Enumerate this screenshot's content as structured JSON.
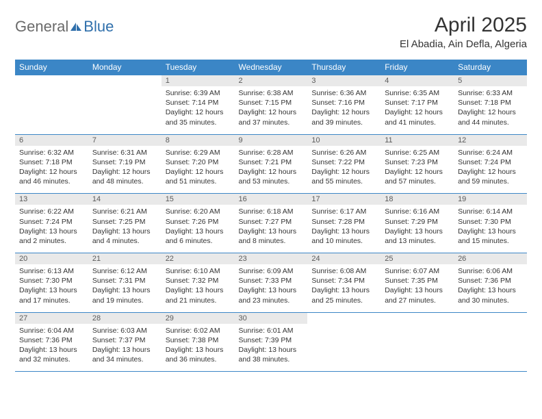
{
  "logo": {
    "general": "General",
    "blue": "Blue",
    "icon_color": "#2f6fab"
  },
  "title": "April 2025",
  "location": "El Abadia, Ain Defla, Algeria",
  "colors": {
    "header_bg": "#3b86c6",
    "header_text": "#ffffff",
    "daynum_bg": "#e9e9e9",
    "daynum_text": "#5a5a5a",
    "body_text": "#333333",
    "rule": "#3b86c6"
  },
  "days_of_week": [
    "Sunday",
    "Monday",
    "Tuesday",
    "Wednesday",
    "Thursday",
    "Friday",
    "Saturday"
  ],
  "weeks": [
    [
      null,
      null,
      {
        "n": "1",
        "sr": "6:39 AM",
        "ss": "7:14 PM",
        "dl": "12 hours and 35 minutes."
      },
      {
        "n": "2",
        "sr": "6:38 AM",
        "ss": "7:15 PM",
        "dl": "12 hours and 37 minutes."
      },
      {
        "n": "3",
        "sr": "6:36 AM",
        "ss": "7:16 PM",
        "dl": "12 hours and 39 minutes."
      },
      {
        "n": "4",
        "sr": "6:35 AM",
        "ss": "7:17 PM",
        "dl": "12 hours and 41 minutes."
      },
      {
        "n": "5",
        "sr": "6:33 AM",
        "ss": "7:18 PM",
        "dl": "12 hours and 44 minutes."
      }
    ],
    [
      {
        "n": "6",
        "sr": "6:32 AM",
        "ss": "7:18 PM",
        "dl": "12 hours and 46 minutes."
      },
      {
        "n": "7",
        "sr": "6:31 AM",
        "ss": "7:19 PM",
        "dl": "12 hours and 48 minutes."
      },
      {
        "n": "8",
        "sr": "6:29 AM",
        "ss": "7:20 PM",
        "dl": "12 hours and 51 minutes."
      },
      {
        "n": "9",
        "sr": "6:28 AM",
        "ss": "7:21 PM",
        "dl": "12 hours and 53 minutes."
      },
      {
        "n": "10",
        "sr": "6:26 AM",
        "ss": "7:22 PM",
        "dl": "12 hours and 55 minutes."
      },
      {
        "n": "11",
        "sr": "6:25 AM",
        "ss": "7:23 PM",
        "dl": "12 hours and 57 minutes."
      },
      {
        "n": "12",
        "sr": "6:24 AM",
        "ss": "7:24 PM",
        "dl": "12 hours and 59 minutes."
      }
    ],
    [
      {
        "n": "13",
        "sr": "6:22 AM",
        "ss": "7:24 PM",
        "dl": "13 hours and 2 minutes."
      },
      {
        "n": "14",
        "sr": "6:21 AM",
        "ss": "7:25 PM",
        "dl": "13 hours and 4 minutes."
      },
      {
        "n": "15",
        "sr": "6:20 AM",
        "ss": "7:26 PM",
        "dl": "13 hours and 6 minutes."
      },
      {
        "n": "16",
        "sr": "6:18 AM",
        "ss": "7:27 PM",
        "dl": "13 hours and 8 minutes."
      },
      {
        "n": "17",
        "sr": "6:17 AM",
        "ss": "7:28 PM",
        "dl": "13 hours and 10 minutes."
      },
      {
        "n": "18",
        "sr": "6:16 AM",
        "ss": "7:29 PM",
        "dl": "13 hours and 13 minutes."
      },
      {
        "n": "19",
        "sr": "6:14 AM",
        "ss": "7:30 PM",
        "dl": "13 hours and 15 minutes."
      }
    ],
    [
      {
        "n": "20",
        "sr": "6:13 AM",
        "ss": "7:30 PM",
        "dl": "13 hours and 17 minutes."
      },
      {
        "n": "21",
        "sr": "6:12 AM",
        "ss": "7:31 PM",
        "dl": "13 hours and 19 minutes."
      },
      {
        "n": "22",
        "sr": "6:10 AM",
        "ss": "7:32 PM",
        "dl": "13 hours and 21 minutes."
      },
      {
        "n": "23",
        "sr": "6:09 AM",
        "ss": "7:33 PM",
        "dl": "13 hours and 23 minutes."
      },
      {
        "n": "24",
        "sr": "6:08 AM",
        "ss": "7:34 PM",
        "dl": "13 hours and 25 minutes."
      },
      {
        "n": "25",
        "sr": "6:07 AM",
        "ss": "7:35 PM",
        "dl": "13 hours and 27 minutes."
      },
      {
        "n": "26",
        "sr": "6:06 AM",
        "ss": "7:36 PM",
        "dl": "13 hours and 30 minutes."
      }
    ],
    [
      {
        "n": "27",
        "sr": "6:04 AM",
        "ss": "7:36 PM",
        "dl": "13 hours and 32 minutes."
      },
      {
        "n": "28",
        "sr": "6:03 AM",
        "ss": "7:37 PM",
        "dl": "13 hours and 34 minutes."
      },
      {
        "n": "29",
        "sr": "6:02 AM",
        "ss": "7:38 PM",
        "dl": "13 hours and 36 minutes."
      },
      {
        "n": "30",
        "sr": "6:01 AM",
        "ss": "7:39 PM",
        "dl": "13 hours and 38 minutes."
      },
      null,
      null,
      null
    ]
  ],
  "labels": {
    "sunrise": "Sunrise:",
    "sunset": "Sunset:",
    "daylight": "Daylight:"
  }
}
